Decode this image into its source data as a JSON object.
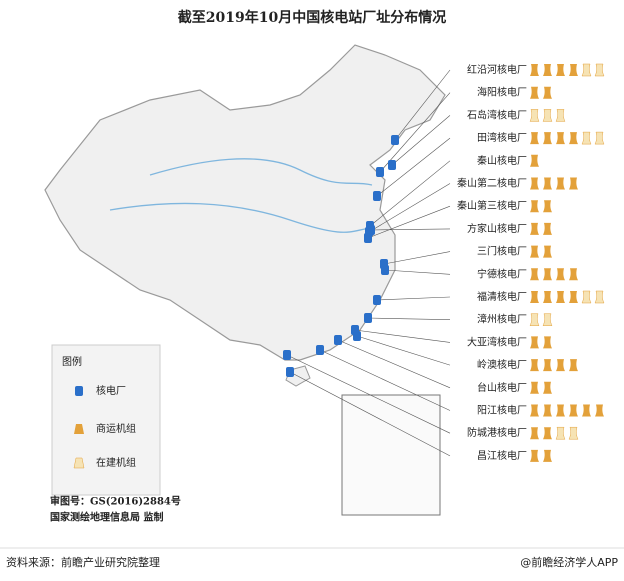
{
  "title": "截至2019年10月中国核电站厂址分布情况",
  "plants": [
    {
      "name": "红沿河核电厂",
      "operating": 4,
      "under_construction": 2
    },
    {
      "name": "海阳核电厂",
      "operating": 2,
      "under_construction": 0
    },
    {
      "name": "石岛湾核电厂",
      "operating": 0,
      "under_construction": 3
    },
    {
      "name": "田湾核电厂",
      "operating": 4,
      "under_construction": 2
    },
    {
      "name": "秦山核电厂",
      "operating": 1,
      "under_construction": 0
    },
    {
      "name": "秦山第二核电厂",
      "operating": 4,
      "under_construction": 0
    },
    {
      "name": "秦山第三核电厂",
      "operating": 2,
      "under_construction": 0
    },
    {
      "name": "方家山核电厂",
      "operating": 2,
      "under_construction": 0
    },
    {
      "name": "三门核电厂",
      "operating": 2,
      "under_construction": 0
    },
    {
      "name": "宁德核电厂",
      "operating": 4,
      "under_construction": 0
    },
    {
      "name": "福清核电厂",
      "operating": 4,
      "under_construction": 2
    },
    {
      "name": "漳州核电厂",
      "operating": 0,
      "under_construction": 2
    },
    {
      "name": "大亚湾核电厂",
      "operating": 2,
      "under_construction": 0
    },
    {
      "name": "岭澳核电厂",
      "operating": 4,
      "under_construction": 0
    },
    {
      "name": "台山核电厂",
      "operating": 2,
      "under_construction": 0
    },
    {
      "name": "阳江核电厂",
      "operating": 6,
      "under_construction": 0
    },
    {
      "name": "防城港核电厂",
      "operating": 2,
      "under_construction": 2
    },
    {
      "name": "昌江核电厂",
      "operating": 2,
      "under_construction": 0
    }
  ],
  "legend": {
    "title": "图例",
    "items": [
      "核电厂",
      "商运机组",
      "在建机组"
    ]
  },
  "map_notes": [
    "审图号：GS(2016)2884号",
    "国家测绘地理信息局 监制"
  ],
  "footer": {
    "source": "资料来源：前瞻产业研究院整理",
    "brand": "@前瞻经济学人APP"
  }
}
